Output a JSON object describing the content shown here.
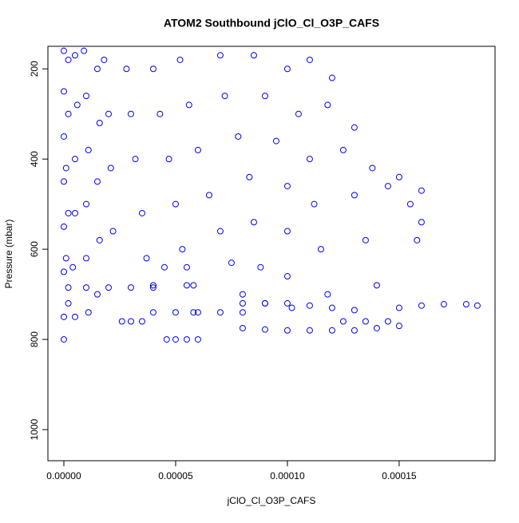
{
  "chart_data": {
    "type": "scatter",
    "title": "ATOM2 Southbound jClO_Cl_O3P_CAFS",
    "x_label": "jClO_Cl_O3P_CAFS",
    "y_label": "Pressure (mbar)",
    "color": "#0000ff",
    "invert_y": true,
    "xlim": [
      -7.14e-06,
      0.0001929
    ],
    "ylim": [
      150,
      1069
    ],
    "xticks": [
      {
        "value": 0,
        "label": "0.00000"
      },
      {
        "value": 5e-05,
        "label": "0.00005"
      },
      {
        "value": 0.0001,
        "label": "0.00010"
      },
      {
        "value": 0.00015,
        "label": "0.00015"
      }
    ],
    "yticks": [
      200,
      400,
      600,
      800,
      1000
    ],
    "x": [
      0,
      0,
      0,
      0,
      0,
      0,
      0,
      0,
      2e-06,
      2e-06,
      1e-06,
      2e-06,
      1e-06,
      2e-06,
      5e-06,
      6e-06,
      5e-06,
      5e-06,
      4e-06,
      5e-06,
      9e-06,
      1e-05,
      1.1e-05,
      1e-05,
      1e-05,
      1.1e-05,
      1.5e-05,
      1.6e-05,
      1.5e-05,
      1.6e-05,
      1.5e-05,
      1.8e-05,
      2e-05,
      2.1e-05,
      2.2e-05,
      2.8e-05,
      3e-05,
      3.2e-05,
      3.5e-05,
      3.7e-05,
      4e-05,
      4e-05,
      4.3e-05,
      4.7e-05,
      5e-05,
      5.3e-05,
      5.5e-05,
      5.8e-05,
      5.2e-05,
      5.6e-05,
      6e-05,
      6.5e-05,
      7e-05,
      7.5e-05,
      8e-05,
      7e-05,
      7.2e-05,
      7.8e-05,
      8.3e-05,
      8.5e-05,
      8.8e-05,
      9e-05,
      8.5e-05,
      9e-05,
      9.5e-05,
      0.0001,
      0.0001,
      0.0001,
      0.000102,
      0.0001,
      0.000105,
      0.00011,
      0.000112,
      0.000115,
      0.000118,
      0.00011,
      0.000118,
      0.000125,
      0.00013,
      0.000135,
      0.00014,
      0.00012,
      0.00013,
      0.000138,
      0.000145,
      0.000155,
      0.00016,
      0.000158,
      0.00015,
      0.00016,
      2e-06,
      1e-05,
      2e-05,
      3e-05,
      4e-05,
      4e-05,
      5e-05,
      6e-05,
      7e-05,
      8e-05,
      2.6e-05,
      3e-05,
      3.5e-05,
      4.6e-05,
      5e-05,
      5.5e-05,
      6e-05,
      8e-05,
      9e-05,
      0.0001,
      0.00011,
      0.00012,
      0.00013,
      8e-05,
      9e-05,
      0.0001,
      0.00011,
      0.00012,
      0.00013,
      0.00014,
      0.00015,
      0.000125,
      0.000135,
      0.000145,
      0.00015,
      0.00016,
      0.00017,
      0.00018,
      0.000185,
      4.5e-05,
      5.5e-05,
      5.8e-05
    ],
    "values": [
      160,
      250,
      350,
      450,
      550,
      650,
      750,
      800,
      180,
      300,
      420,
      520,
      620,
      720,
      170,
      280,
      400,
      520,
      640,
      750,
      160,
      260,
      380,
      500,
      620,
      740,
      200,
      320,
      450,
      580,
      700,
      180,
      300,
      420,
      560,
      200,
      300,
      400,
      520,
      620,
      680,
      200,
      300,
      400,
      500,
      600,
      680,
      740,
      180,
      280,
      380,
      480,
      560,
      630,
      700,
      170,
      260,
      350,
      440,
      540,
      640,
      720,
      170,
      260,
      360,
      460,
      560,
      660,
      730,
      200,
      300,
      400,
      500,
      600,
      700,
      180,
      280,
      380,
      480,
      580,
      680,
      220,
      330,
      420,
      460,
      500,
      540,
      580,
      440,
      470,
      685,
      685,
      685,
      685,
      685,
      740,
      740,
      740,
      740,
      740,
      760,
      760,
      760,
      800,
      800,
      800,
      800,
      720,
      720,
      720,
      725,
      730,
      735,
      775,
      778,
      780,
      780,
      780,
      780,
      775,
      770,
      760,
      760,
      760,
      730,
      725,
      722,
      722,
      725,
      640,
      640,
      680
    ]
  }
}
